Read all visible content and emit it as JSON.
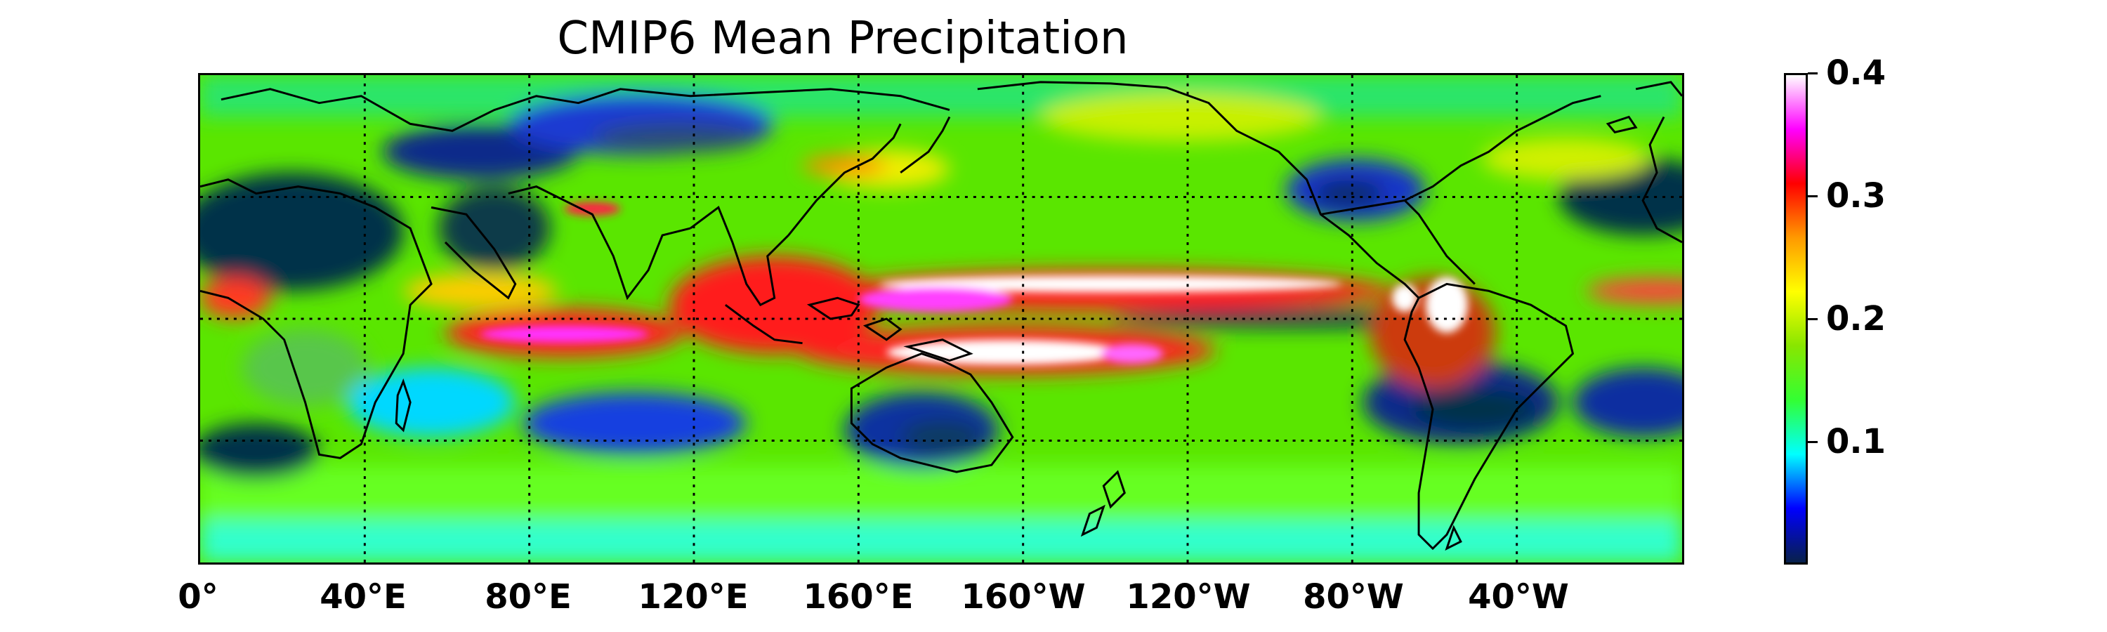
{
  "title": "CMIP6 Mean Precipitation",
  "map": {
    "projection": "plate-carree",
    "lon_range": [
      0,
      360
    ],
    "lat_range": [
      -60,
      60
    ],
    "gridlines": {
      "style": "dotted",
      "lons": [
        40,
        80,
        120,
        160,
        200,
        240,
        280,
        320
      ],
      "lats": [
        -30,
        0,
        30
      ]
    },
    "variable": "precipitation",
    "colormap": "ncl-style (dark blue → cyan → green → yellow → red → magenta → white)"
  },
  "x_tick_labels": [
    "0°",
    "40°E",
    "80°E",
    "120°E",
    "160°E",
    "160°W",
    "120°W",
    "80°W",
    "40°W"
  ],
  "colorbar": {
    "min": 0,
    "max": 0.4,
    "ticks": [
      "0.1",
      "0.2",
      "0.3",
      "0.4"
    ],
    "tick_values": [
      0.1,
      0.2,
      0.3,
      0.4
    ]
  },
  "colors": {
    "dry": "#08214a",
    "low": "#0000ff",
    "cyan": "#00ffff",
    "green": "#33ff33",
    "mid": "#88e600",
    "yellow": "#ffff00",
    "orange": "#ff9900",
    "red": "#ff0000",
    "magenta": "#ff00ff",
    "max": "#ffffff"
  }
}
